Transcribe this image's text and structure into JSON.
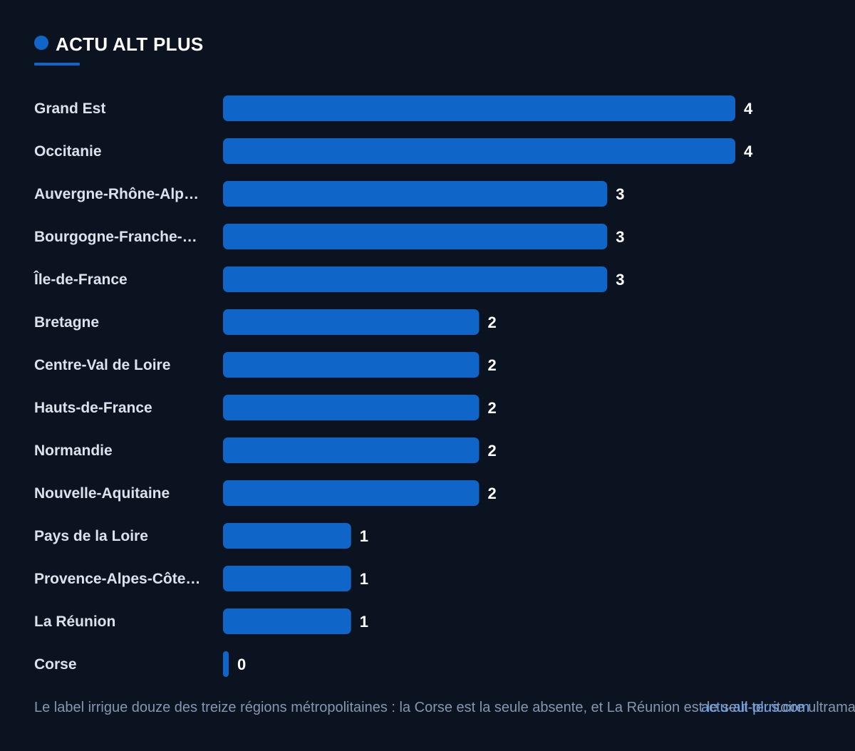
{
  "brand": {
    "title": "ACTU ALT PLUS"
  },
  "chart_data": {
    "type": "bar",
    "orientation": "horizontal",
    "categories": [
      "Grand Est",
      "Occitanie",
      "Auvergne-Rhône-Alp…",
      "Bourgogne-Franche-…",
      "Île-de-France",
      "Bretagne",
      "Centre-Val de Loire",
      "Hauts-de-France",
      "Normandie",
      "Nouvelle-Aquitaine",
      "Pays de la Loire",
      "Provence-Alpes-Côte…",
      "La Réunion",
      "Corse"
    ],
    "values": [
      4,
      4,
      3,
      3,
      3,
      2,
      2,
      2,
      2,
      2,
      1,
      1,
      1,
      0
    ],
    "xlim": [
      0,
      4
    ],
    "grid": false,
    "bar_color": "#0f66c8"
  },
  "caption": "Le label irrigue douze des treize régions métropolitaines : la Corse est la seule absente, et La Réunion est le seul territoire ultramarin",
  "source": "actu-alt-plus.com",
  "colors": {
    "background": "#0b1320",
    "accent": "#0f66c8",
    "label": "#dbe2ec",
    "value": "#ffffff",
    "caption": "#8597b0",
    "source": "#6ea3e6"
  }
}
